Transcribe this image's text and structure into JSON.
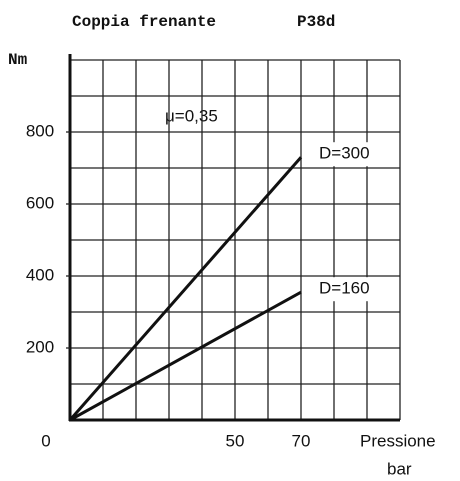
{
  "chart_data": {
    "type": "line",
    "title": "Coppia frenante",
    "model": "P38d",
    "annotation": "μ=0,35",
    "y_label": "Nm",
    "x_label": "Pressione",
    "x_unit": "bar",
    "x": [
      0,
      70
    ],
    "series": [
      {
        "name": "D=300",
        "color": "#111111",
        "values": [
          0,
          730
        ]
      },
      {
        "name": "D=160",
        "color": "#111111",
        "values": [
          0,
          355
        ]
      }
    ],
    "xlim": [
      0,
      100
    ],
    "ylim": [
      0,
      1000
    ],
    "xticks": [
      0,
      50,
      70
    ],
    "yticks": [
      200,
      400,
      600,
      800
    ],
    "xgrid": [
      10,
      20,
      30,
      40,
      50,
      60,
      70,
      80,
      90,
      100
    ],
    "ygrid": [
      100,
      200,
      300,
      400,
      500,
      600,
      700,
      800,
      900,
      1000
    ],
    "grid": true
  }
}
